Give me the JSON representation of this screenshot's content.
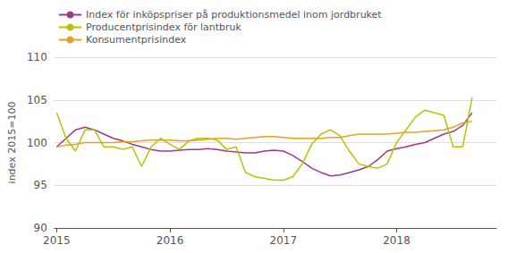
{
  "chart_data": {
    "type": "line",
    "ylabel": "index 2015=100",
    "x": [
      2015,
      2015.0833333333333,
      2015.1666666666667,
      2015.25,
      2015.3333333333333,
      2015.4166666666667,
      2015.5,
      2015.5833333333333,
      2015.6666666666667,
      2015.75,
      2015.8333333333333,
      2015.9166666666667,
      2016,
      2016.0833333333333,
      2016.1666666666667,
      2016.25,
      2016.3333333333333,
      2016.4166666666667,
      2016.5,
      2016.5833333333333,
      2016.6666666666667,
      2016.75,
      2016.8333333333333,
      2016.9166666666667,
      2017,
      2017.0833333333333,
      2017.1666666666667,
      2017.25,
      2017.3333333333333,
      2017.4166666666667,
      2017.5,
      2017.5833333333333,
      2017.6666666666667,
      2017.75,
      2017.8333333333333,
      2017.9166666666667,
      2018,
      2018.0833333333333,
      2018.1666666666667,
      2018.25,
      2018.3333333333333,
      2018.4166666666667,
      2018.5,
      2018.5833333333333,
      2018.6666666666667
    ],
    "series": [
      {
        "name": "Index för inköpspriser på produktionsmedel inom jordbruket",
        "color": "#9b3a8a",
        "values": [
          99.5,
          100.5,
          101.5,
          101.8,
          101.5,
          101.0,
          100.5,
          100.2,
          99.8,
          99.5,
          99.2,
          99.0,
          99.0,
          99.1,
          99.2,
          99.2,
          99.3,
          99.2,
          99.0,
          98.9,
          98.8,
          98.8,
          99.0,
          99.1,
          99.0,
          98.5,
          97.8,
          97.0,
          96.5,
          96.1,
          96.2,
          96.5,
          96.8,
          97.2,
          98.0,
          99.0,
          99.3,
          99.5,
          99.8,
          100.0,
          100.5,
          101.0,
          101.3,
          102.0,
          103.5
        ]
      },
      {
        "name": "Producentprisindex för lantbruk",
        "color": "#b5c400",
        "values": [
          103.5,
          100.5,
          99.0,
          101.5,
          101.5,
          99.5,
          99.5,
          99.2,
          99.5,
          97.2,
          99.5,
          100.5,
          99.8,
          99.2,
          100.2,
          100.5,
          100.5,
          100.3,
          99.2,
          99.5,
          96.5,
          96.0,
          95.8,
          95.6,
          95.6,
          96.0,
          97.5,
          99.8,
          101.0,
          101.5,
          100.8,
          99.0,
          97.5,
          97.2,
          97.0,
          97.5,
          100.0,
          101.5,
          103.0,
          103.8,
          103.5,
          103.2,
          99.5,
          99.5,
          105.3
        ]
      },
      {
        "name": "Konsumentprisindex",
        "color": "#e8a020",
        "values": [
          99.5,
          99.7,
          99.8,
          100.0,
          100.0,
          100.0,
          100.0,
          100.1,
          100.1,
          100.2,
          100.3,
          100.3,
          100.3,
          100.2,
          100.2,
          100.3,
          100.4,
          100.5,
          100.5,
          100.4,
          100.5,
          100.6,
          100.7,
          100.7,
          100.6,
          100.5,
          100.5,
          100.5,
          100.5,
          100.6,
          100.6,
          100.8,
          101.0,
          101.0,
          101.0,
          101.0,
          101.1,
          101.2,
          101.2,
          101.3,
          101.4,
          101.5,
          101.8,
          102.3,
          102.5
        ]
      }
    ],
    "xlim": [
      2014.98,
      2018.88
    ],
    "xticks": [
      2015,
      2016,
      2017,
      2018
    ],
    "ylim": [
      90,
      110
    ],
    "yticks": [
      90,
      95,
      100,
      105,
      110
    ],
    "grid": true,
    "legend": "upper left"
  }
}
